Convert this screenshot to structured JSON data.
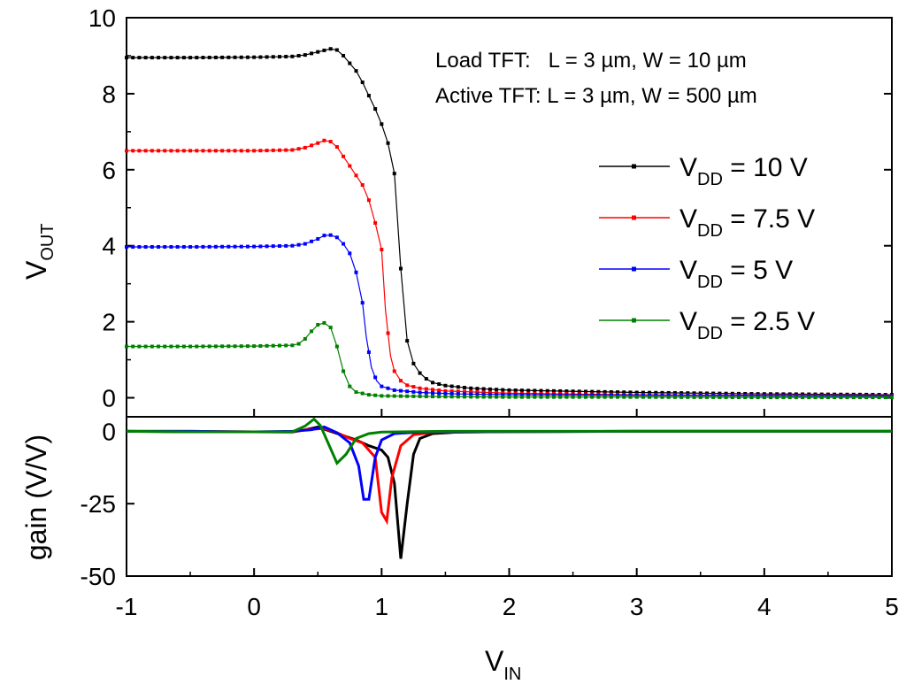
{
  "chart_data": [
    {
      "type": "line",
      "panel": "top",
      "ylabel_main": "V",
      "ylabel_sub": "OUT",
      "ylim": [
        -0.5,
        10
      ],
      "xlim": [
        -1,
        5
      ],
      "yticks": [
        "0",
        "2",
        "4",
        "6",
        "8",
        "10"
      ],
      "annotations": [
        "Load TFT:   L = 3 µm, W = 10 µm",
        "Active TFT: L = 3 µm, W = 500 µm"
      ],
      "legend_position": "right",
      "series": [
        {
          "label_main": "V",
          "label_sub": "DD",
          "label_rest": " = 10 V",
          "color": "#000000",
          "points": [
            [
              -1,
              8.95
            ],
            [
              -0.5,
              8.95
            ],
            [
              0,
              8.96
            ],
            [
              0.3,
              8.98
            ],
            [
              0.4,
              9.02
            ],
            [
              0.5,
              9.1
            ],
            [
              0.6,
              9.18
            ],
            [
              0.65,
              9.15
            ],
            [
              0.7,
              9.0
            ],
            [
              0.75,
              8.8
            ],
            [
              0.8,
              8.6
            ],
            [
              0.85,
              8.3
            ],
            [
              0.9,
              7.95
            ],
            [
              0.95,
              7.6
            ],
            [
              1.0,
              7.2
            ],
            [
              1.05,
              6.7
            ],
            [
              1.1,
              5.9
            ],
            [
              1.15,
              3.4
            ],
            [
              1.2,
              1.5
            ],
            [
              1.25,
              0.9
            ],
            [
              1.3,
              0.65
            ],
            [
              1.35,
              0.5
            ],
            [
              1.4,
              0.4
            ],
            [
              1.5,
              0.32
            ],
            [
              1.7,
              0.25
            ],
            [
              2,
              0.2
            ],
            [
              3,
              0.14
            ],
            [
              4,
              0.1
            ],
            [
              5,
              0.08
            ]
          ]
        },
        {
          "label_main": "V",
          "label_sub": "DD",
          "label_rest": " = 7.5 V",
          "color": "#ff0000",
          "points": [
            [
              -1,
              6.5
            ],
            [
              -0.5,
              6.5
            ],
            [
              0,
              6.5
            ],
            [
              0.3,
              6.52
            ],
            [
              0.4,
              6.58
            ],
            [
              0.5,
              6.7
            ],
            [
              0.55,
              6.77
            ],
            [
              0.6,
              6.74
            ],
            [
              0.65,
              6.6
            ],
            [
              0.7,
              6.35
            ],
            [
              0.75,
              6.1
            ],
            [
              0.8,
              5.85
            ],
            [
              0.85,
              5.6
            ],
            [
              0.9,
              5.2
            ],
            [
              0.95,
              4.6
            ],
            [
              1.0,
              3.9
            ],
            [
              1.03,
              2.3
            ],
            [
              1.07,
              1.1
            ],
            [
              1.1,
              0.7
            ],
            [
              1.15,
              0.45
            ],
            [
              1.2,
              0.33
            ],
            [
              1.3,
              0.25
            ],
            [
              1.5,
              0.18
            ],
            [
              2,
              0.12
            ],
            [
              3,
              0.08
            ],
            [
              4,
              0.06
            ],
            [
              5,
              0.05
            ]
          ]
        },
        {
          "label_main": "V",
          "label_sub": "DD",
          "label_rest": " = 5 V",
          "color": "#0000ff",
          "points": [
            [
              -1,
              3.97
            ],
            [
              -0.5,
              3.97
            ],
            [
              0,
              3.98
            ],
            [
              0.3,
              4.0
            ],
            [
              0.4,
              4.05
            ],
            [
              0.5,
              4.18
            ],
            [
              0.55,
              4.27
            ],
            [
              0.6,
              4.28
            ],
            [
              0.65,
              4.22
            ],
            [
              0.7,
              4.05
            ],
            [
              0.75,
              3.8
            ],
            [
              0.8,
              3.3
            ],
            [
              0.85,
              2.5
            ],
            [
              0.88,
              1.6
            ],
            [
              0.92,
              0.8
            ],
            [
              0.96,
              0.45
            ],
            [
              1.0,
              0.3
            ],
            [
              1.1,
              0.2
            ],
            [
              1.3,
              0.14
            ],
            [
              1.6,
              0.1
            ],
            [
              2,
              0.08
            ],
            [
              3,
              0.06
            ],
            [
              4,
              0.05
            ],
            [
              5,
              0.04
            ]
          ]
        },
        {
          "label_main": "V",
          "label_sub": "DD",
          "label_rest": " = 2.5 V",
          "color": "#008000",
          "points": [
            [
              -1,
              1.35
            ],
            [
              -0.5,
              1.35
            ],
            [
              0,
              1.36
            ],
            [
              0.3,
              1.38
            ],
            [
              0.35,
              1.42
            ],
            [
              0.4,
              1.55
            ],
            [
              0.45,
              1.75
            ],
            [
              0.5,
              1.92
            ],
            [
              0.55,
              1.97
            ],
            [
              0.6,
              1.85
            ],
            [
              0.65,
              1.35
            ],
            [
              0.7,
              0.7
            ],
            [
              0.75,
              0.3
            ],
            [
              0.8,
              0.15
            ],
            [
              0.9,
              0.08
            ],
            [
              1.0,
              0.05
            ],
            [
              1.5,
              0.03
            ],
            [
              2,
              0.02
            ],
            [
              3,
              0.02
            ],
            [
              4,
              0.01
            ],
            [
              5,
              0.01
            ]
          ]
        }
      ]
    },
    {
      "type": "line",
      "panel": "bottom",
      "ylabel": "gain (V/V)",
      "xlabel_main": "V",
      "xlabel_sub": "IN",
      "ylim": [
        -50,
        5
      ],
      "xlim": [
        -1,
        5
      ],
      "yticks": [
        "0",
        "-25",
        "-50"
      ],
      "xticks": [
        "-1",
        "0",
        "1",
        "2",
        "3",
        "4",
        "5"
      ],
      "series": [
        {
          "color": "#000000",
          "points": [
            [
              -1,
              0
            ],
            [
              -0.5,
              -0.2
            ],
            [
              0,
              -0.2
            ],
            [
              0.3,
              -0.3
            ],
            [
              0.4,
              0.5
            ],
            [
              0.5,
              1.5
            ],
            [
              0.6,
              0
            ],
            [
              0.7,
              -1.5
            ],
            [
              0.8,
              -3
            ],
            [
              0.9,
              -5
            ],
            [
              1.0,
              -6.5
            ],
            [
              1.05,
              -9
            ],
            [
              1.1,
              -18
            ],
            [
              1.15,
              -44
            ],
            [
              1.2,
              -25
            ],
            [
              1.25,
              -8
            ],
            [
              1.3,
              -2.5
            ],
            [
              1.4,
              -0.8
            ],
            [
              1.6,
              -0.3
            ],
            [
              2,
              -0.1
            ],
            [
              3,
              0
            ],
            [
              4,
              0
            ],
            [
              5,
              0
            ]
          ]
        },
        {
          "color": "#ff0000",
          "points": [
            [
              -1,
              0
            ],
            [
              -0.5,
              0
            ],
            [
              0,
              -0.2
            ],
            [
              0.3,
              -0.2
            ],
            [
              0.4,
              0.5
            ],
            [
              0.55,
              1
            ],
            [
              0.65,
              -0.5
            ],
            [
              0.75,
              -2.5
            ],
            [
              0.85,
              -4
            ],
            [
              0.95,
              -9
            ],
            [
              1.0,
              -28
            ],
            [
              1.04,
              -31
            ],
            [
              1.08,
              -16
            ],
            [
              1.15,
              -5
            ],
            [
              1.25,
              -1.2
            ],
            [
              1.4,
              -0.4
            ],
            [
              2,
              -0.1
            ],
            [
              3,
              0
            ],
            [
              5,
              0
            ]
          ]
        },
        {
          "color": "#0000ff",
          "points": [
            [
              -1,
              0
            ],
            [
              -0.5,
              0
            ],
            [
              0,
              -0.2
            ],
            [
              0.3,
              0
            ],
            [
              0.45,
              0.5
            ],
            [
              0.55,
              1.5
            ],
            [
              0.65,
              -0.5
            ],
            [
              0.75,
              -4
            ],
            [
              0.82,
              -12
            ],
            [
              0.86,
              -23.5
            ],
            [
              0.9,
              -23.5
            ],
            [
              0.95,
              -9
            ],
            [
              1.0,
              -3
            ],
            [
              1.1,
              -0.8
            ],
            [
              1.3,
              -0.3
            ],
            [
              2,
              -0.1
            ],
            [
              3,
              0
            ],
            [
              5,
              0
            ]
          ]
        },
        {
          "color": "#008000",
          "points": [
            [
              -1,
              0
            ],
            [
              -0.5,
              -0.2
            ],
            [
              0,
              -0.2
            ],
            [
              0.3,
              -0.2
            ],
            [
              0.4,
              1.8
            ],
            [
              0.47,
              4.2
            ],
            [
              0.52,
              2
            ],
            [
              0.58,
              -4
            ],
            [
              0.65,
              -11
            ],
            [
              0.72,
              -8
            ],
            [
              0.8,
              -2.5
            ],
            [
              0.9,
              -0.8
            ],
            [
              1.0,
              -0.3
            ],
            [
              1.5,
              0
            ],
            [
              2,
              0
            ],
            [
              5,
              0
            ]
          ]
        }
      ]
    }
  ]
}
